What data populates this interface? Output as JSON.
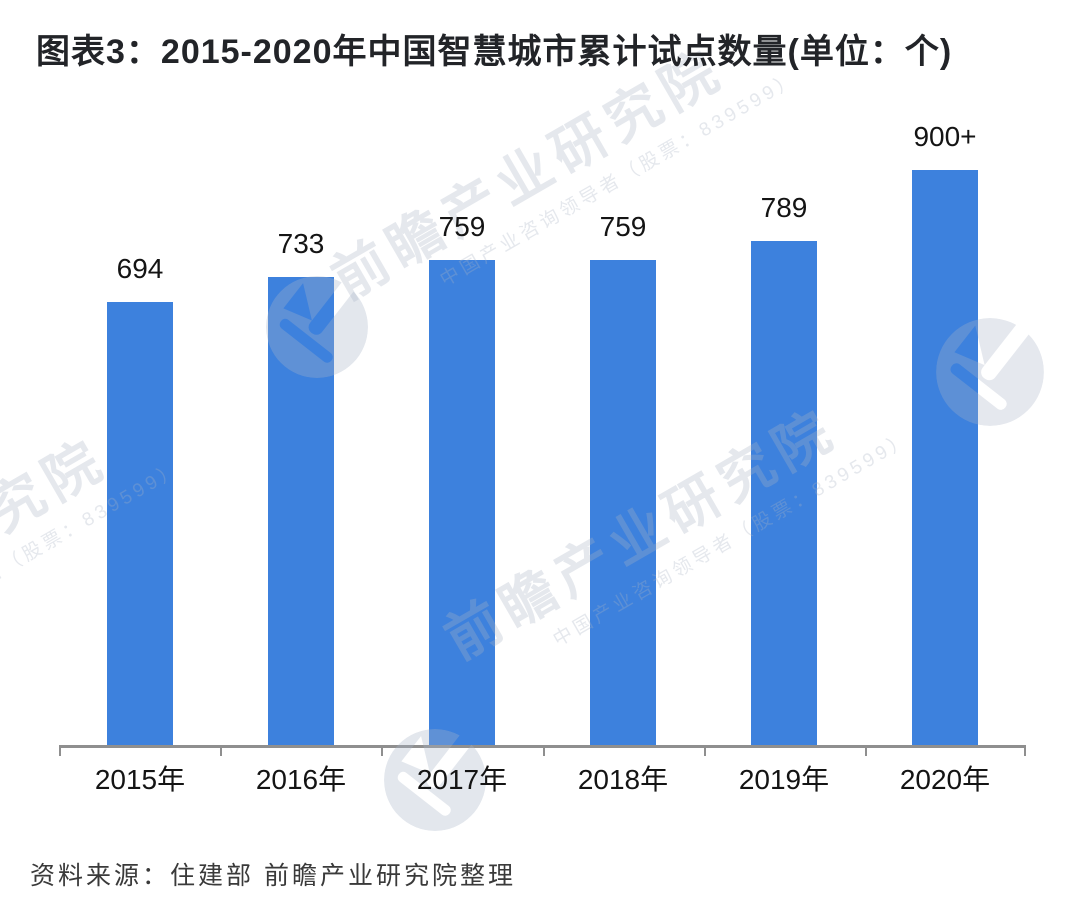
{
  "title": "图表3：2015-2020年中国智慧城市累计试点数量(单位：个)",
  "source": "资料来源：住建部 前瞻产业研究院整理",
  "watermark": {
    "main": "前瞻产业研究院",
    "sub": "中国产业咨询领导者（股票：839599）",
    "logo_name": "qianzhan-logo"
  },
  "colors": {
    "bar": "#3D81DD",
    "axis": "#8f8f8f",
    "title_text": "#222428",
    "label_text": "#141414",
    "source_text": "#3a3a3a"
  },
  "chart_data": {
    "type": "bar",
    "title": "图表3：2015-2020年中国智慧城市累计试点数量(单位：个)",
    "categories": [
      "2015年",
      "2016年",
      "2017年",
      "2018年",
      "2019年",
      "2020年"
    ],
    "values": [
      694,
      733,
      759,
      759,
      789,
      900
    ],
    "value_labels": [
      "694",
      "733",
      "759",
      "759",
      "789",
      "900+"
    ],
    "xlabel": "",
    "ylabel": "",
    "unit": "个",
    "ylim": [
      0,
      900
    ],
    "grid": false,
    "legend_position": "none",
    "bar_color": "#3D81DD"
  }
}
